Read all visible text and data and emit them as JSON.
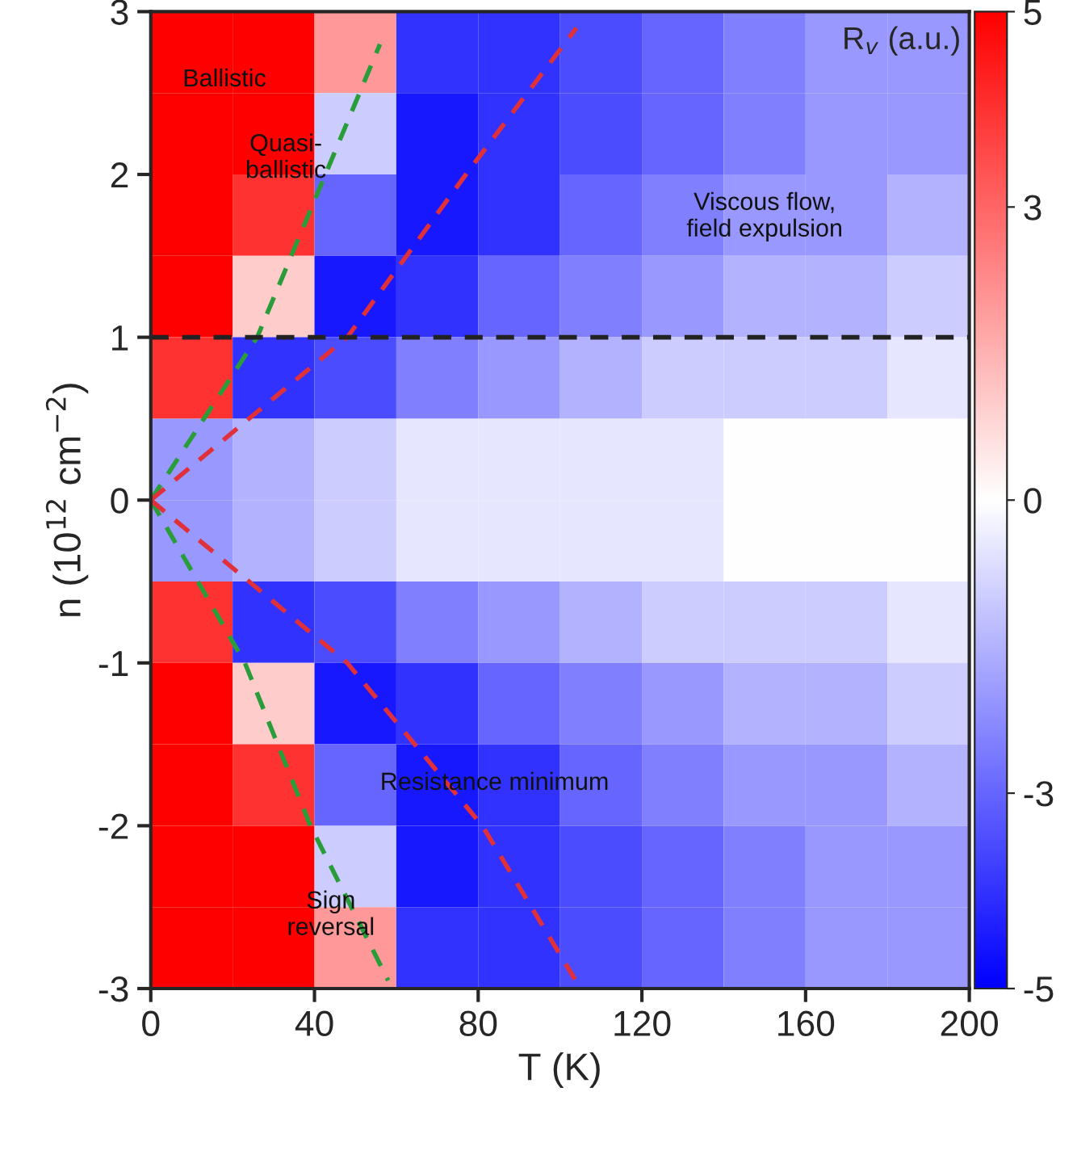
{
  "chart_data": {
    "type": "heatmap",
    "xlabel": "T (K)",
    "ylabel": "n (10$^{12}$ cm$^{−2}$)",
    "clabel": "R$_{v}$ (a.u.)",
    "x": [
      10,
      30,
      50,
      70,
      90,
      110,
      130,
      150,
      170,
      190
    ],
    "y": [
      2.75,
      2.25,
      1.75,
      1.25,
      0.75,
      0.25,
      -0.25,
      -0.75,
      -1.25,
      -1.75,
      -2.25,
      -2.75
    ],
    "cells": [
      [
        5,
        5,
        2,
        -4,
        -4,
        -3.5,
        -3,
        -2.5,
        -2,
        -2
      ],
      [
        5,
        5,
        -1,
        -4.5,
        -4,
        -3.5,
        -3,
        -2.5,
        -2,
        -2
      ],
      [
        5,
        4,
        -3,
        -4.5,
        -4,
        -3,
        -2.5,
        -2,
        -2,
        -1.5
      ],
      [
        5,
        1,
        -4.5,
        -4,
        -3,
        -2.5,
        -2,
        -1.5,
        -1.5,
        -1
      ],
      [
        4,
        -4,
        -3.5,
        -2.5,
        -2,
        -1.5,
        -1,
        -1,
        -1,
        -0.5
      ],
      [
        -2,
        -1.5,
        -1,
        -0.5,
        -0.5,
        -0.5,
        -0.5,
        0,
        0,
        0
      ],
      [
        -2,
        -1.5,
        -1,
        -0.5,
        -0.5,
        -0.5,
        -0.5,
        0,
        0,
        0
      ],
      [
        4,
        -4,
        -3.5,
        -2.5,
        -2,
        -1.5,
        -1,
        -1,
        -1,
        -0.5
      ],
      [
        5,
        1,
        -4.5,
        -4,
        -3,
        -2.5,
        -2,
        -1.5,
        -1.5,
        -1
      ],
      [
        5,
        4,
        -3,
        -4.5,
        -4,
        -3,
        -2.5,
        -2,
        -2,
        -1.5
      ],
      [
        5,
        5,
        -1,
        -4.5,
        -4,
        -3.5,
        -3,
        -2.5,
        -2,
        -2
      ],
      [
        5,
        5,
        2,
        -4,
        -4,
        -3.5,
        -3,
        -2.5,
        -2,
        -2
      ]
    ],
    "clim": [
      -5,
      5
    ],
    "cticks": [
      -5,
      -3,
      0,
      3,
      5
    ],
    "series": [
      {
        "type": "line",
        "color": "#2a9d3a",
        "x": [
          0,
          26,
          56
        ],
        "values": [
          0,
          1,
          2.8
        ]
      },
      {
        "type": "line",
        "color": "#2a9d3a",
        "x": [
          0,
          23,
          39,
          58
        ],
        "values": [
          0,
          -1,
          -2,
          -2.95
        ]
      },
      {
        "type": "line",
        "color": "#e0303a",
        "x": [
          0,
          48,
          77,
          104
        ],
        "values": [
          0,
          1,
          2,
          2.9
        ]
      },
      {
        "type": "line",
        "color": "#e0303a",
        "x": [
          0,
          48,
          81,
          105
        ],
        "values": [
          0,
          -1,
          -2,
          -3
        ]
      }
    ],
    "ref_lines": [
      {
        "axis": "y",
        "value": 1,
        "color": "#222222",
        "line_style": "dashed"
      }
    ],
    "annotations": [
      "Ballistic",
      "Quasi-\nballistic",
      "Viscous flow,\nfield expulsion",
      "Resistance minimum",
      "Sign\nreversal"
    ],
    "line_style": "dashed",
    "marker": "none",
    "xlim": [
      0,
      200
    ],
    "xticks": [
      0,
      40,
      80,
      120,
      160,
      200
    ],
    "ylim": [
      -3,
      3
    ],
    "yticks": [
      -3,
      -2,
      -1,
      0,
      1,
      2,
      3
    ],
    "grid": false
  }
}
